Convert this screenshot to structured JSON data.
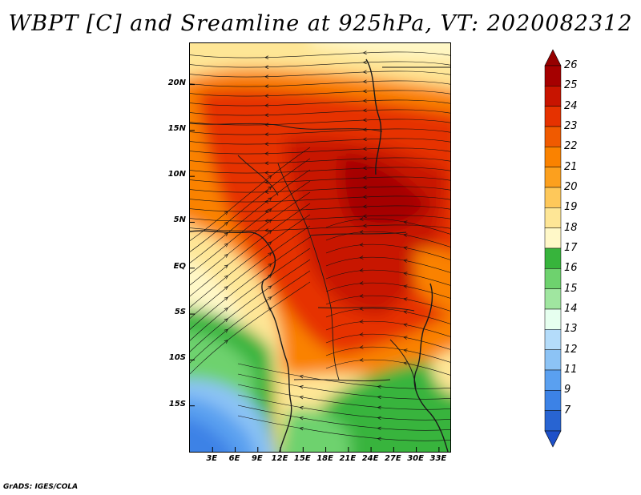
{
  "title": "WBPT [C] and Sreamline at 925hPa, VT: 2020082312",
  "credit": "GrADS: IGES/COLA",
  "map": {
    "lat_ticks": [
      {
        "label": "20N",
        "value": 20
      },
      {
        "label": "15N",
        "value": 15
      },
      {
        "label": "10N",
        "value": 10
      },
      {
        "label": "5N",
        "value": 5
      },
      {
        "label": "EQ",
        "value": 0
      },
      {
        "label": "5S",
        "value": -5
      },
      {
        "label": "10S",
        "value": -10
      },
      {
        "label": "15S",
        "value": -15
      }
    ],
    "lon_ticks": [
      {
        "label": "3E",
        "value": 3
      },
      {
        "label": "6E",
        "value": 6
      },
      {
        "label": "9E",
        "value": 9
      },
      {
        "label": "12E",
        "value": 12
      },
      {
        "label": "15E",
        "value": 15
      },
      {
        "label": "18E",
        "value": 18
      },
      {
        "label": "21E",
        "value": 21
      },
      {
        "label": "24E",
        "value": 24
      },
      {
        "label": "27E",
        "value": 27
      },
      {
        "label": "30E",
        "value": 30
      },
      {
        "label": "33E",
        "value": 33
      }
    ],
    "lat_range": [
      -20,
      24.5
    ],
    "lon_range": [
      0,
      34.5
    ]
  },
  "colorbar": {
    "levels": [
      {
        "label": "26",
        "value": 26,
        "color": "#a50000"
      },
      {
        "label": "25",
        "value": 25,
        "color": "#c81400"
      },
      {
        "label": "24",
        "value": 24,
        "color": "#e63200"
      },
      {
        "label": "23",
        "value": 23,
        "color": "#f05a00"
      },
      {
        "label": "22",
        "value": 22,
        "color": "#fa8200"
      },
      {
        "label": "21",
        "value": 21,
        "color": "#fca01e"
      },
      {
        "label": "20",
        "value": 20,
        "color": "#fec85a"
      },
      {
        "label": "19",
        "value": 19,
        "color": "#fee696"
      },
      {
        "label": "18",
        "value": 18,
        "color": "#fff8c8"
      },
      {
        "label": "17",
        "value": 17,
        "color": "#37b43c"
      },
      {
        "label": "16",
        "value": 16,
        "color": "#6ed26e"
      },
      {
        "label": "15",
        "value": 15,
        "color": "#a0e6a0"
      },
      {
        "label": "14",
        "value": 14,
        "color": "#e6ffef"
      },
      {
        "label": "13",
        "value": 13,
        "color": "#b4dcfa"
      },
      {
        "label": "12",
        "value": 12,
        "color": "#8cc3f5"
      },
      {
        "label": "11",
        "value": 11,
        "color": "#5aa0f0"
      },
      {
        "label": "9",
        "value": 9,
        "color": "#3c82e6"
      },
      {
        "label": "7",
        "value": 7,
        "color": "#2864d2"
      }
    ],
    "under_color": "#1e50c8",
    "over_color": "#960000"
  }
}
